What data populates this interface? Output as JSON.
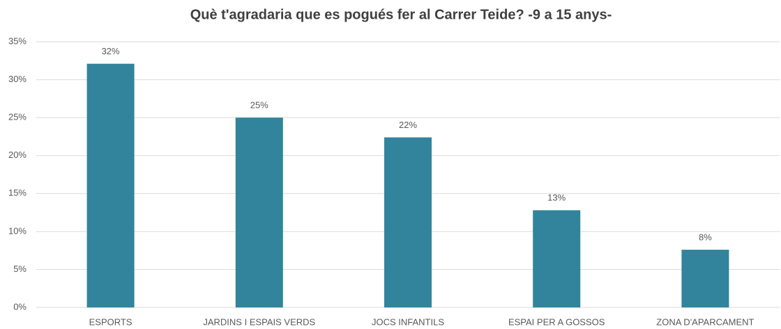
{
  "chart_data": {
    "type": "bar",
    "title": "Què t'agradaria que es pogués fer al Carrer Teide? -9 a 15 anys-",
    "categories": [
      "ESPORTS",
      "JARDINS I ESPAIS VERDS",
      "JOCS INFANTILS",
      "ESPAI PER A GOSSOS",
      "ZONA D'APARCAMENT"
    ],
    "values": [
      32.1,
      25,
      22.4,
      12.8,
      7.6
    ],
    "value_labels": [
      "32%",
      "25%",
      "22%",
      "13%",
      "8%"
    ],
    "color": "#31849b",
    "ylim": [
      0,
      35
    ],
    "yticks": [
      {
        "value": 0,
        "label": "0%"
      },
      {
        "value": 5,
        "label": "5%"
      },
      {
        "value": 10,
        "label": "10%"
      },
      {
        "value": 15,
        "label": "15%"
      },
      {
        "value": 20,
        "label": "20%"
      },
      {
        "value": 25,
        "label": "25%"
      },
      {
        "value": 30,
        "label": "30%"
      },
      {
        "value": 35,
        "label": "35%"
      }
    ],
    "grid": true
  }
}
